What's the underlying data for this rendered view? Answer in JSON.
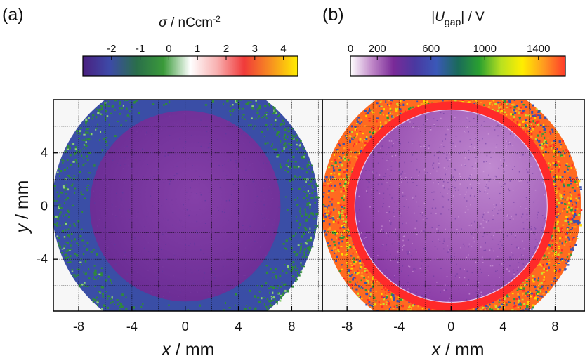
{
  "chart_data": [
    {
      "panel": "(a)",
      "type": "heatmap",
      "colorbar": {
        "title_symbol": "σ",
        "title_unit": " / nCcm",
        "title_sup": "-2",
        "range": [
          -3.0,
          4.5
        ],
        "ticks": [
          {
            "value": -2,
            "label": "-2"
          },
          {
            "value": -1,
            "label": "-1"
          },
          {
            "value": 0,
            "label": "0"
          },
          {
            "value": 1,
            "label": "1"
          },
          {
            "value": 2,
            "label": "2"
          },
          {
            "value": 3,
            "label": "3"
          },
          {
            "value": 4,
            "label": "4"
          }
        ],
        "colors": [
          "#4a2080",
          "#3d4aa8",
          "#2a6e4a",
          "#3a9a3a",
          "#ffffff",
          "#f8b0b0",
          "#f03a3a",
          "#f79020",
          "#ffee00"
        ]
      },
      "xlabel_symbol": "x",
      "xlabel_unit": " / mm",
      "ylabel_symbol": "y",
      "ylabel_unit": " / mm",
      "xlim": [
        -9.9,
        10.3
      ],
      "ylim": [
        -7.9,
        8
      ],
      "xticks": [
        -8,
        -4,
        0,
        4,
        8
      ],
      "xtick_labels": [
        "-8",
        "-4",
        "0",
        "4",
        "8"
      ],
      "yticks": [
        -4,
        0,
        4
      ],
      "ytick_labels": [
        "-4",
        "0",
        "4"
      ],
      "disk_radius_mm": 10,
      "inner_radius_mm": 7.2,
      "regions": {
        "inner_value": -2.5,
        "ring_value": -1.6,
        "edge_value": -0.9
      },
      "colors": {
        "inner": "#6a2c94",
        "inner_light": "#8540a8",
        "ring": "#3a4ea6",
        "speck_green": "#2f8a3a",
        "speck_light": "#8fd07a"
      }
    },
    {
      "panel": "(b)",
      "type": "heatmap",
      "colorbar": {
        "title_sym": "U",
        "title_sub": "gap",
        "title_unit": "| / V",
        "title_open": "|",
        "range": [
          0,
          1600
        ],
        "ticks": [
          {
            "value": 0,
            "label": "0"
          },
          {
            "value": 200,
            "label": "200"
          },
          {
            "value": 600,
            "label": "600"
          },
          {
            "value": 1000,
            "label": "1000"
          },
          {
            "value": 1400,
            "label": "1400"
          }
        ],
        "colors": [
          "#ffffff",
          "#c088c8",
          "#7a2a98",
          "#4a38a0",
          "#3a58b8",
          "#1a6a5a",
          "#2aa030",
          "#b8e020",
          "#ffee00",
          "#ff9a20",
          "#ff3a2a"
        ]
      },
      "xlabel_symbol": "x",
      "xlabel_unit": " / mm",
      "xlim": [
        -9.9,
        10.3
      ],
      "ylim": [
        -7.9,
        8
      ],
      "xticks": [
        -8,
        -4,
        0,
        4,
        8
      ],
      "xtick_labels": [
        "-8",
        "-4",
        "0",
        "4",
        "8"
      ],
      "disk_radius_mm": 10,
      "inner_radius_mm": 7.4,
      "regions": {
        "inner_value": 250,
        "ring_value": 1500,
        "edge_value": 1200
      },
      "colors": {
        "inner": "#8a3aa6",
        "inner_light": "#c08ad0",
        "ring": "#ff2a2a",
        "speck_yellow": "#ffd700",
        "speck_green": "#2a9a3a",
        "speck_blue": "#3a50b0"
      }
    }
  ]
}
